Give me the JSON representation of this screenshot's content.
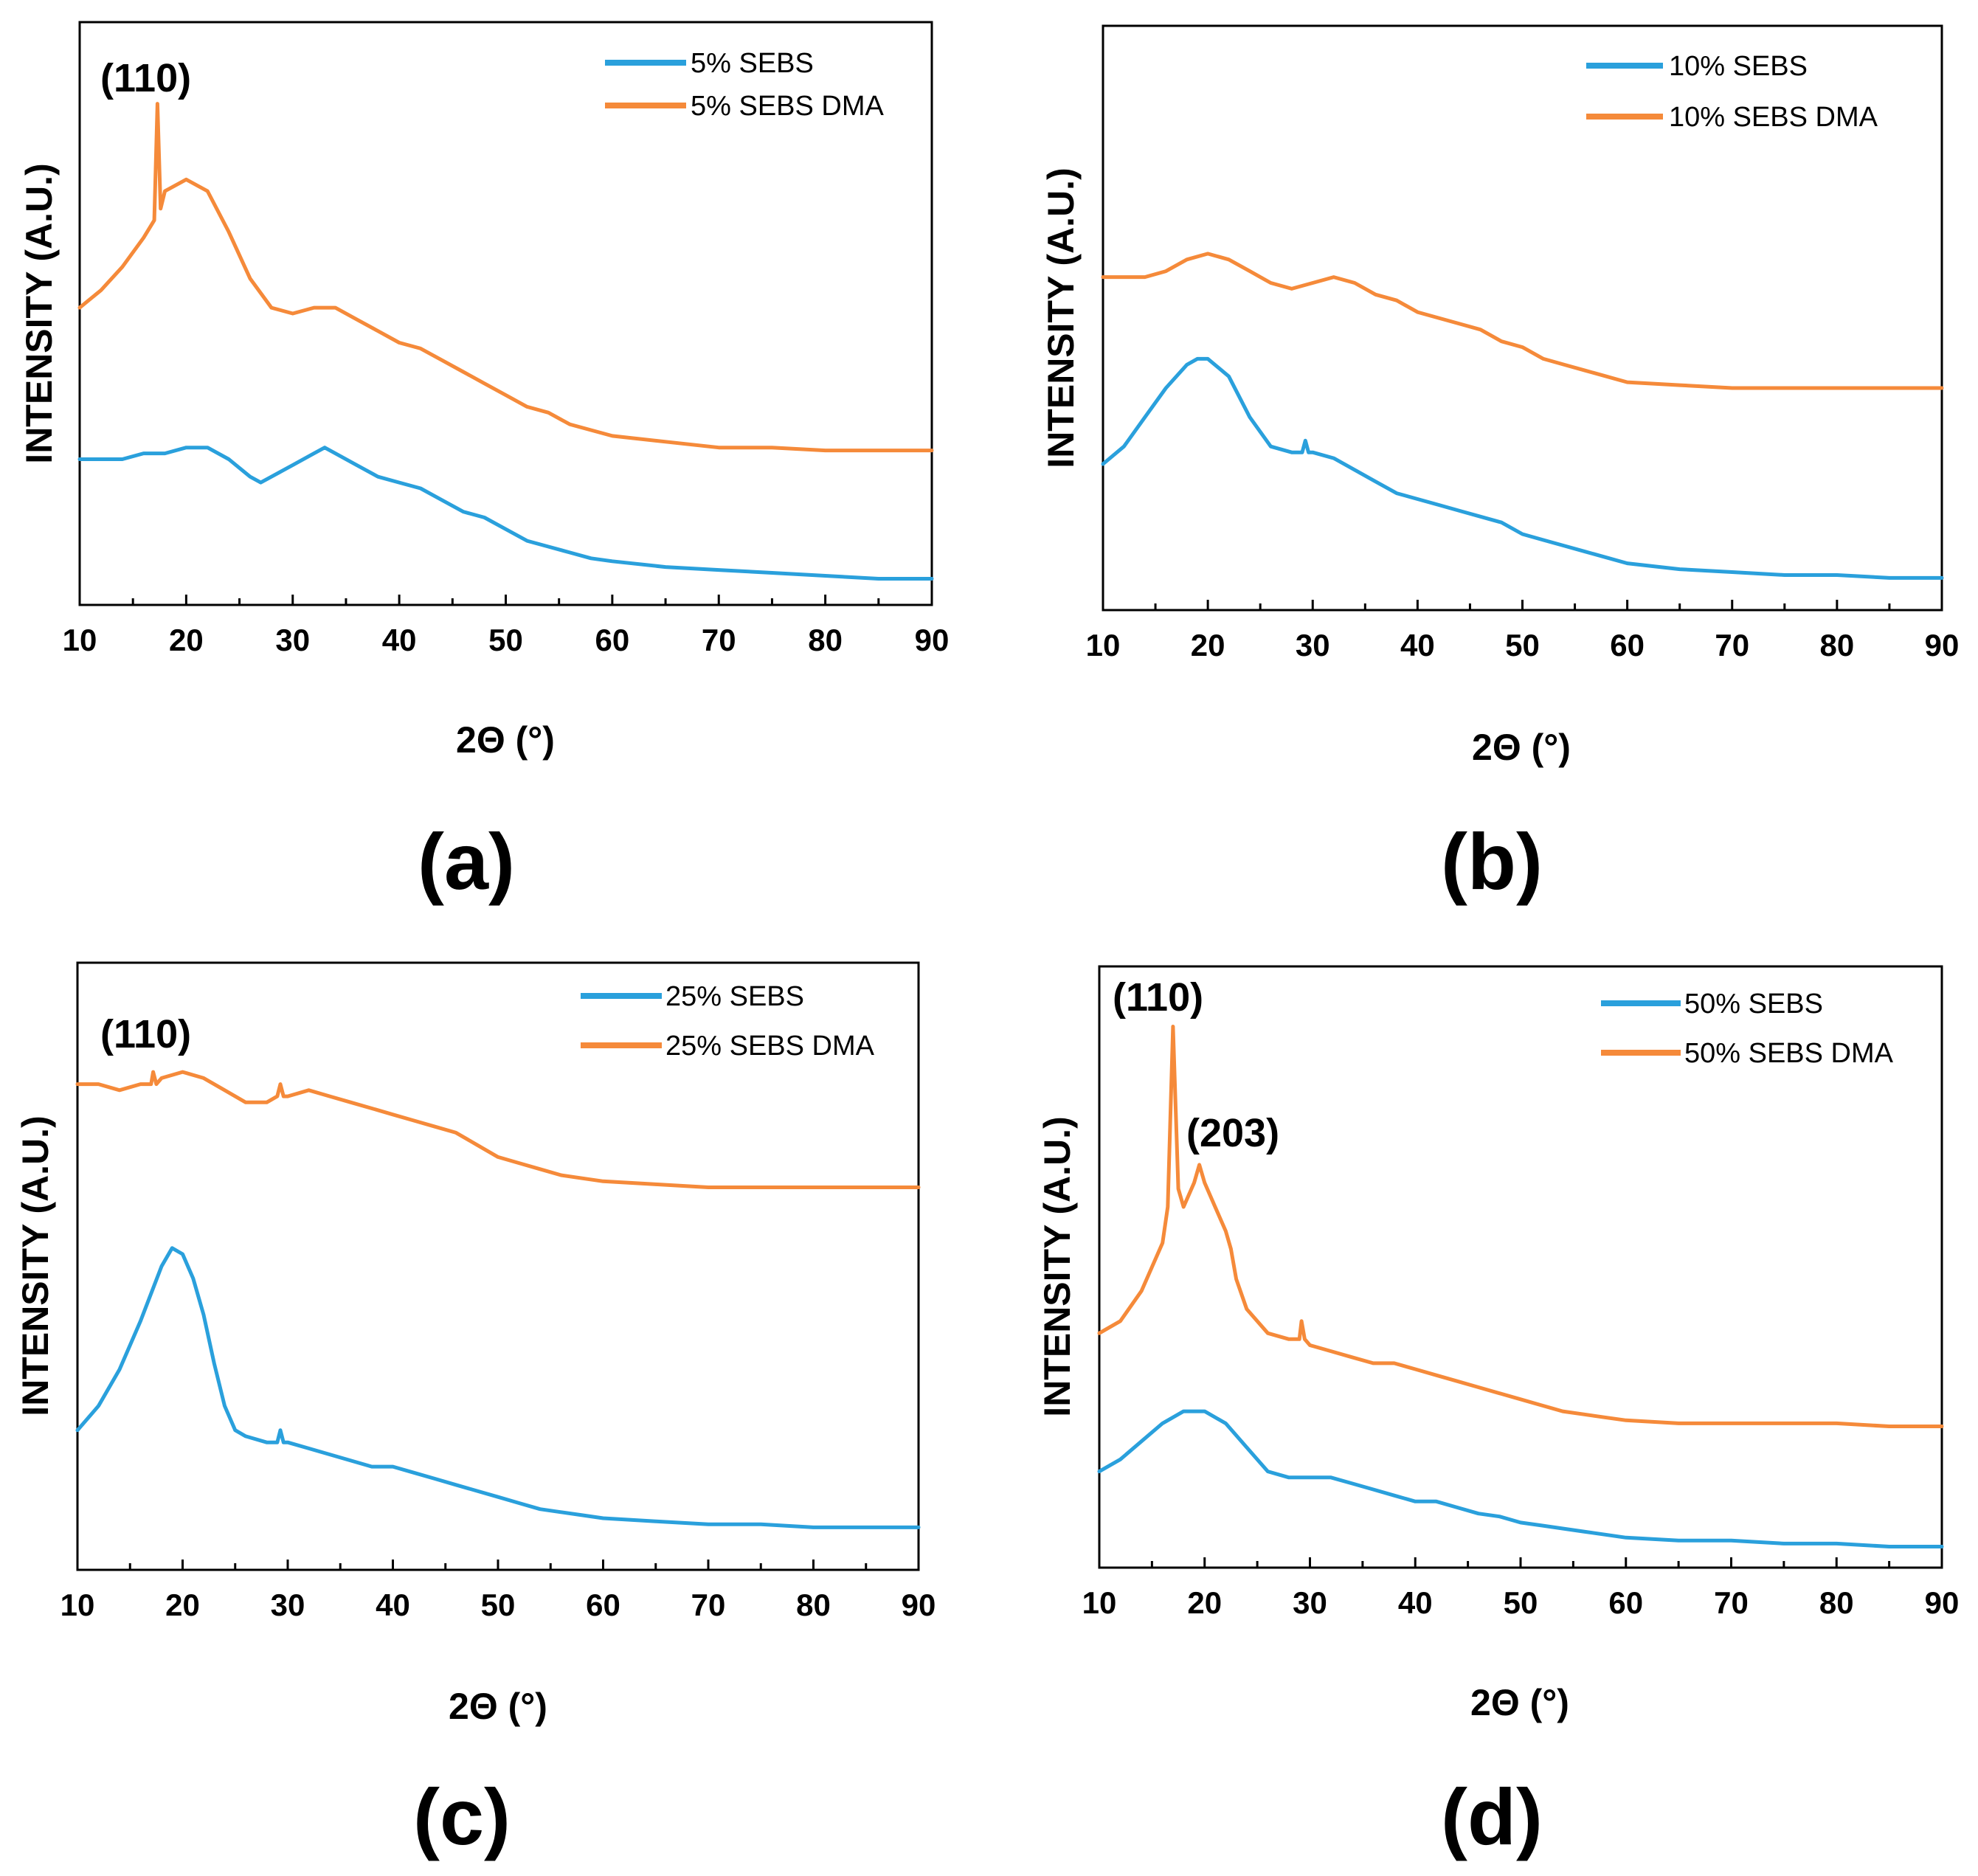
{
  "colors": {
    "sebs": "#2aa0dc",
    "sebs_dma": "#f58a3a",
    "axis": "#000000",
    "background": "#ffffff"
  },
  "chart_data": [
    {
      "type": "line",
      "panel": "(a)",
      "xlabel": "2Θ (°)",
      "ylabel": "INTENSITY (A.U.)",
      "xlim": [
        10,
        90
      ],
      "ylim": [
        0,
        100
      ],
      "xticks": [
        "10",
        "20",
        "30",
        "40",
        "50",
        "60",
        "70",
        "80",
        "90"
      ],
      "grid": false,
      "legend_position": "top-right",
      "annotations": [
        {
          "text": "(110)",
          "x": 17.3,
          "y": 92
        }
      ],
      "series": [
        {
          "name": "5% SEBS",
          "color_key": "sebs",
          "x": [
            10,
            12,
            14,
            16,
            18,
            20,
            22,
            24,
            26,
            27,
            28,
            30,
            32,
            33,
            34,
            36,
            38,
            40,
            42,
            44,
            46,
            48,
            50,
            52,
            54,
            56,
            58,
            60,
            65,
            70,
            75,
            80,
            85,
            90
          ],
          "y": [
            25,
            25,
            25,
            26,
            26,
            27,
            27,
            25,
            22,
            21,
            22,
            24,
            26,
            27,
            26,
            24,
            22,
            21,
            20,
            18,
            16,
            15,
            13,
            11,
            10,
            9,
            8,
            7.5,
            6.5,
            6,
            5.5,
            5,
            4.5,
            4.5
          ]
        },
        {
          "name": "5% SEBS DMA",
          "color_key": "sebs_dma",
          "x": [
            10,
            12,
            14,
            16,
            17,
            17.3,
            17.6,
            18,
            20,
            22,
            24,
            26,
            28,
            30,
            32,
            34,
            36,
            38,
            40,
            42,
            44,
            46,
            48,
            50,
            52,
            54,
            56,
            58,
            60,
            65,
            70,
            75,
            80,
            85,
            90
          ],
          "y": [
            51,
            54,
            58,
            63,
            66,
            86,
            68,
            71,
            73,
            71,
            64,
            56,
            51,
            50,
            51,
            51,
            49,
            47,
            45,
            44,
            42,
            40,
            38,
            36,
            34,
            33,
            31,
            30,
            29,
            28,
            27,
            27,
            26.5,
            26.5,
            26.5
          ]
        }
      ]
    },
    {
      "type": "line",
      "panel": "(b)",
      "xlabel": "2Θ (°)",
      "ylabel": "INTENSITY (A.U.)",
      "xlim": [
        10,
        90
      ],
      "ylim": [
        0,
        100
      ],
      "xticks": [
        "10",
        "20",
        "30",
        "40",
        "50",
        "60",
        "70",
        "80",
        "90"
      ],
      "grid": false,
      "legend_position": "top-right",
      "annotations": [],
      "series": [
        {
          "name": "10% SEBS",
          "color_key": "sebs",
          "x": [
            10,
            12,
            14,
            16,
            18,
            19,
            20,
            22,
            24,
            26,
            28,
            29,
            29.3,
            29.6,
            30,
            32,
            34,
            36,
            38,
            40,
            42,
            44,
            46,
            48,
            50,
            52,
            54,
            56,
            58,
            60,
            65,
            70,
            75,
            80,
            85,
            90
          ],
          "y": [
            25,
            28,
            33,
            38,
            42,
            43,
            43,
            40,
            33,
            28,
            27,
            27,
            29,
            27,
            27,
            26,
            24,
            22,
            20,
            19,
            18,
            17,
            16,
            15,
            13,
            12,
            11,
            10,
            9,
            8,
            7,
            6.5,
            6,
            6,
            5.5,
            5.5
          ]
        },
        {
          "name": "10% SEBS DMA",
          "color_key": "sebs_dma",
          "x": [
            10,
            12,
            14,
            16,
            18,
            20,
            22,
            24,
            26,
            28,
            30,
            32,
            34,
            36,
            38,
            40,
            42,
            44,
            46,
            48,
            50,
            52,
            54,
            56,
            58,
            60,
            65,
            70,
            75,
            80,
            85,
            90
          ],
          "y": [
            57,
            57,
            57,
            58,
            60,
            61,
            60,
            58,
            56,
            55,
            56,
            57,
            56,
            54,
            53,
            51,
            50,
            49,
            48,
            46,
            45,
            43,
            42,
            41,
            40,
            39,
            38.5,
            38,
            38,
            38,
            38,
            38
          ]
        }
      ]
    },
    {
      "type": "line",
      "panel": "(c)",
      "xlabel": "2Θ (°)",
      "ylabel": "INTENSITY (A.U.)",
      "xlim": [
        10,
        90
      ],
      "ylim": [
        0,
        100
      ],
      "xticks": [
        "10",
        "20",
        "30",
        "40",
        "50",
        "60",
        "70",
        "80",
        "90"
      ],
      "grid": false,
      "legend_position": "top-right",
      "annotations": [
        {
          "text": "(110)",
          "x": 17.3,
          "y": 85
        }
      ],
      "series": [
        {
          "name": "25% SEBS",
          "color_key": "sebs",
          "x": [
            10,
            12,
            14,
            16,
            18,
            19,
            20,
            21,
            22,
            23,
            24,
            25,
            26,
            28,
            29,
            29.3,
            29.6,
            30,
            32,
            34,
            36,
            38,
            40,
            42,
            44,
            46,
            48,
            50,
            52,
            54,
            56,
            58,
            60,
            65,
            70,
            75,
            80,
            85,
            90
          ],
          "y": [
            23,
            27,
            33,
            41,
            50,
            53,
            52,
            48,
            42,
            34,
            27,
            23,
            22,
            21,
            21,
            23,
            21,
            21,
            20,
            19,
            18,
            17,
            17,
            16,
            15,
            14,
            13,
            12,
            11,
            10,
            9.5,
            9,
            8.5,
            8,
            7.5,
            7.5,
            7,
            7,
            7
          ]
        },
        {
          "name": "25% SEBS DMA",
          "color_key": "sebs_dma",
          "x": [
            10,
            12,
            14,
            16,
            17,
            17.2,
            17.5,
            18,
            20,
            22,
            24,
            26,
            28,
            29,
            29.3,
            29.6,
            30,
            32,
            34,
            36,
            38,
            40,
            42,
            44,
            46,
            48,
            50,
            52,
            54,
            56,
            58,
            60,
            65,
            70,
            75,
            80,
            85,
            90
          ],
          "y": [
            80,
            80,
            79,
            80,
            80,
            82,
            80,
            81,
            82,
            81,
            79,
            77,
            77,
            78,
            80,
            78,
            78,
            79,
            78,
            77,
            76,
            75,
            74,
            73,
            72,
            70,
            68,
            67,
            66,
            65,
            64.5,
            64,
            63.5,
            63,
            63,
            63,
            63,
            63
          ]
        }
      ]
    },
    {
      "type": "line",
      "panel": "(d)",
      "xlabel": "2Θ (°)",
      "ylabel": "INTENSITY (A.U.)",
      "xlim": [
        10,
        90
      ],
      "ylim": [
        0,
        100
      ],
      "xticks": [
        "10",
        "20",
        "30",
        "40",
        "50",
        "60",
        "70",
        "80",
        "90"
      ],
      "grid": false,
      "legend_position": "top-right",
      "annotations": [
        {
          "text": "(110)",
          "x": 17.0,
          "y": 93
        },
        {
          "text": "(203)",
          "x": 19.5,
          "y": 71
        }
      ],
      "series": [
        {
          "name": "50% SEBS",
          "color_key": "sebs",
          "x": [
            10,
            12,
            14,
            16,
            18,
            19,
            20,
            22,
            24,
            26,
            28,
            30,
            32,
            34,
            36,
            38,
            40,
            42,
            44,
            46,
            48,
            50,
            52,
            54,
            56,
            58,
            60,
            65,
            70,
            75,
            80,
            85,
            90
          ],
          "y": [
            16,
            18,
            21,
            24,
            26,
            26,
            26,
            24,
            20,
            16,
            15,
            15,
            15,
            14,
            13,
            12,
            11,
            11,
            10,
            9,
            8.5,
            7.5,
            7,
            6.5,
            6,
            5.5,
            5,
            4.5,
            4.5,
            4,
            4,
            3.5,
            3.5
          ]
        },
        {
          "name": "50% SEBS DMA",
          "color_key": "sebs_dma",
          "x": [
            10,
            12,
            14,
            15,
            16,
            16.5,
            17,
            17.5,
            18,
            19,
            19.5,
            20,
            21,
            22,
            22.5,
            23,
            24,
            26,
            28,
            29,
            29.2,
            29.5,
            30,
            32,
            34,
            36,
            38,
            40,
            42,
            44,
            46,
            48,
            50,
            52,
            54,
            56,
            58,
            60,
            65,
            70,
            75,
            80,
            85,
            90
          ],
          "y": [
            39,
            41,
            46,
            50,
            54,
            60,
            90,
            63,
            60,
            64,
            67,
            64,
            60,
            56,
            53,
            48,
            43,
            39,
            38,
            38,
            41,
            38,
            37,
            36,
            35,
            34,
            34,
            33,
            32,
            31,
            30,
            29,
            28,
            27,
            26,
            25.5,
            25,
            24.5,
            24,
            24,
            24,
            24,
            23.5,
            23.5
          ]
        }
      ]
    }
  ],
  "panels_text": [
    {
      "letter": "(a)",
      "ylabel": "INTENSITY (A.U.)",
      "xlabel": "2Θ (°)",
      "legend": [
        "5% SEBS",
        "5% SEBS DMA"
      ],
      "annotations": [
        "(110)"
      ]
    },
    {
      "letter": "(b)",
      "ylabel": "INTENSITY (A.U.)",
      "xlabel": "2Θ (°)",
      "legend": [
        "10% SEBS",
        "10% SEBS DMA"
      ],
      "annotations": []
    },
    {
      "letter": "(c)",
      "ylabel": "INTENSITY (A.U.)",
      "xlabel": "2Θ (°)",
      "legend": [
        "25% SEBS",
        "25% SEBS DMA"
      ],
      "annotations": [
        "(110)"
      ]
    },
    {
      "letter": "(d)",
      "ylabel": "INTENSITY (A.U.)",
      "xlabel": "2Θ (°)",
      "legend": [
        "50% SEBS",
        "50% SEBS DMA"
      ],
      "annotations": [
        "(110)",
        "(203)"
      ]
    }
  ]
}
